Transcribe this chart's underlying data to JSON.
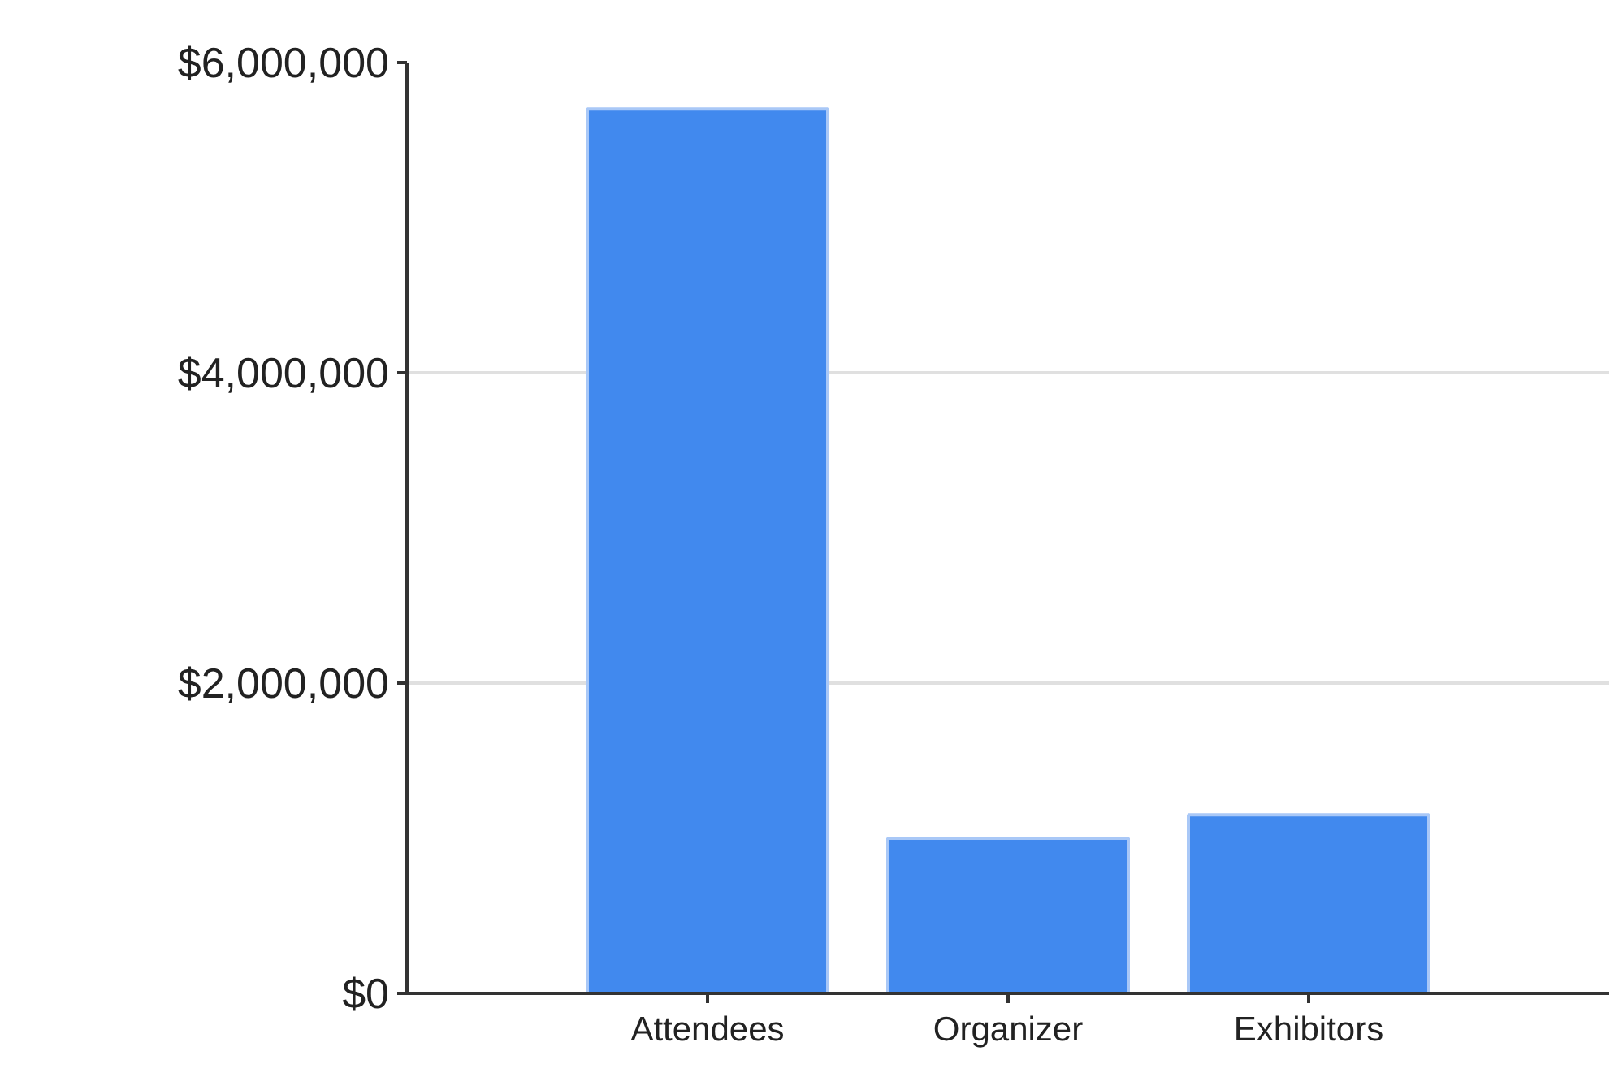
{
  "chart_data": {
    "type": "bar",
    "categories": [
      "Attendees",
      "Organizer",
      "Exhibitors"
    ],
    "values": [
      5700000,
      1000000,
      1150000
    ],
    "color": "#4189ee",
    "ylim": [
      0,
      6000000
    ],
    "yticks": [
      {
        "value": 0,
        "label": "$0"
      },
      {
        "value": 2000000,
        "label": "$2,000,000"
      },
      {
        "value": 4000000,
        "label": "$4,000,000"
      },
      {
        "value": 6000000,
        "label": "$6,000,000"
      }
    ],
    "grid": "y"
  }
}
